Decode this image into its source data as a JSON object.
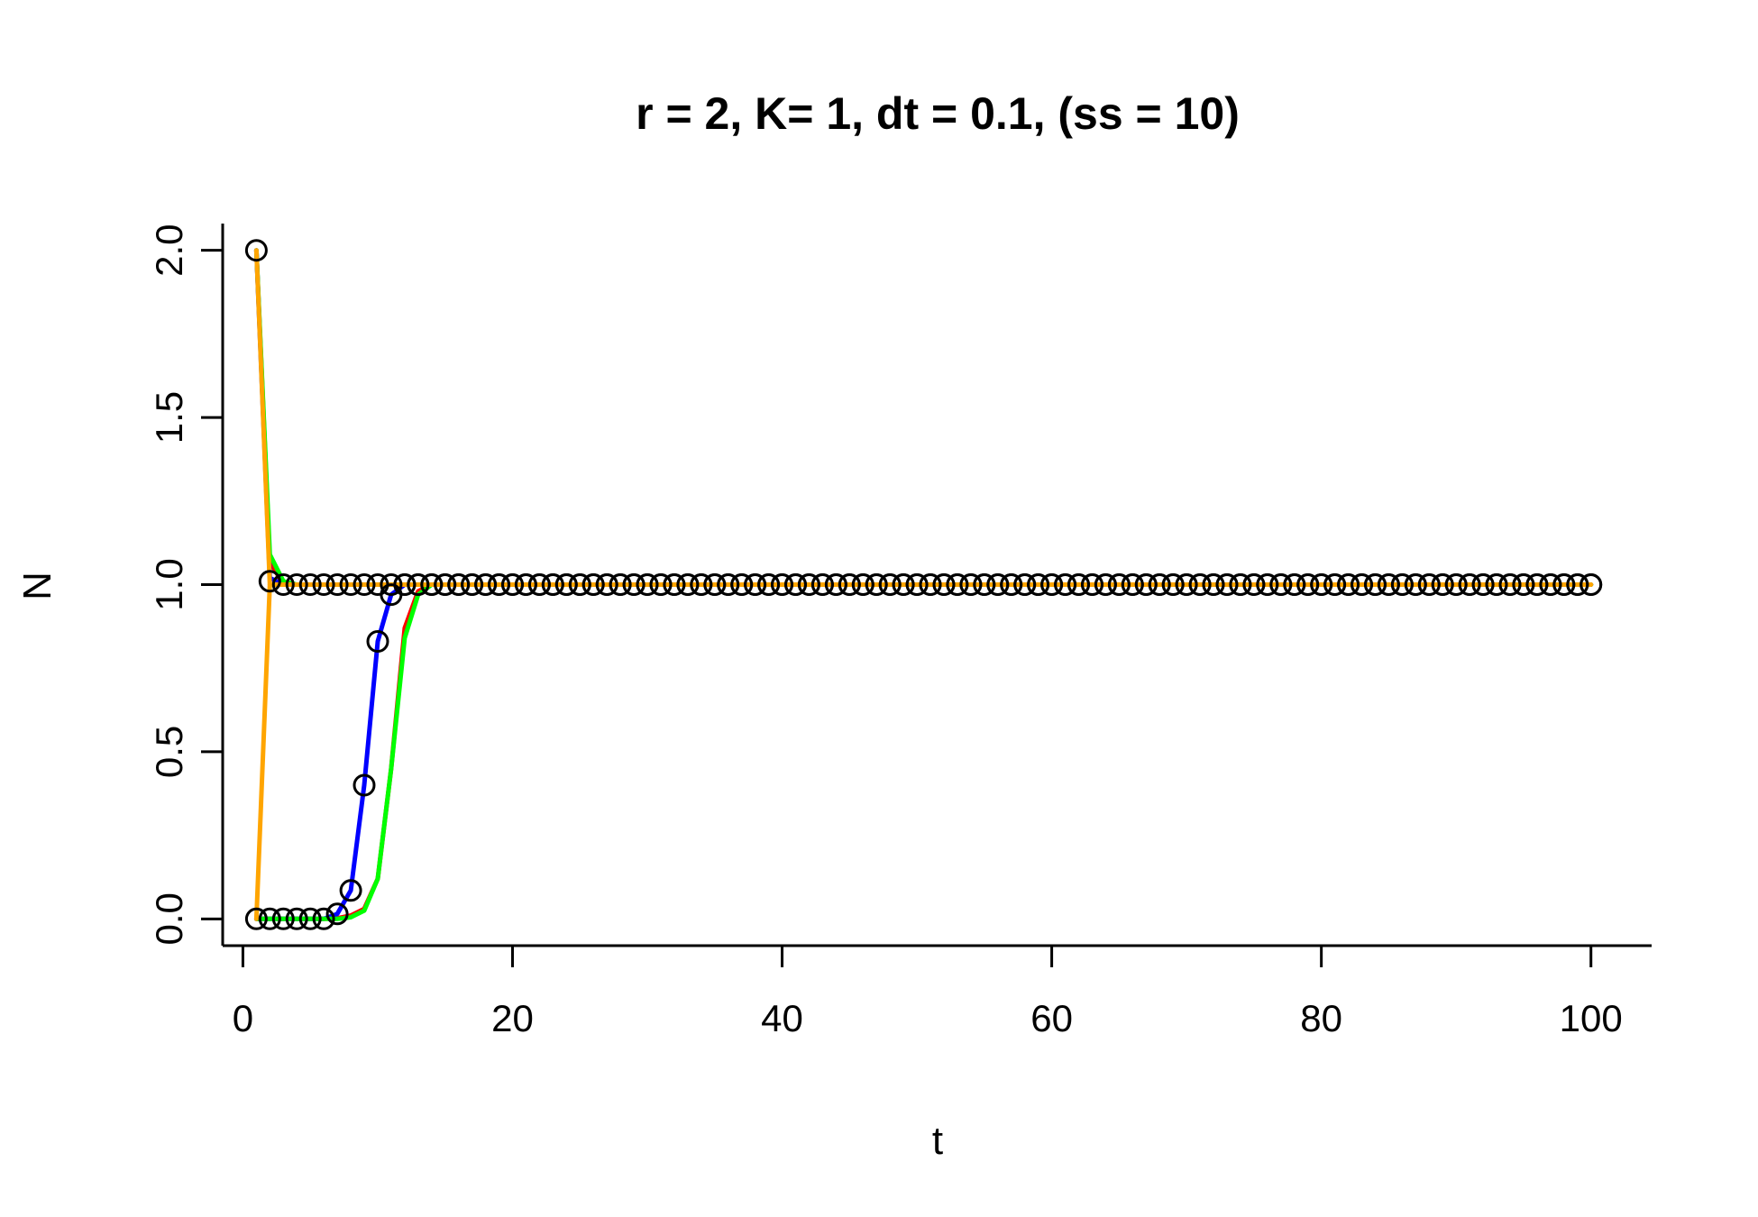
{
  "chart_data": {
    "type": "line",
    "title": "r = 2, K= 1, dt = 0.1, (ss = 10)",
    "xlabel": "t",
    "ylabel": "N",
    "xlim": [
      -1.5,
      104.5
    ],
    "ylim": [
      -0.08,
      2.08
    ],
    "xticks": [
      0,
      20,
      40,
      60,
      80,
      100
    ],
    "yticks": [
      0.0,
      0.5,
      1.0,
      1.5,
      2.0
    ],
    "xtick_labels": [
      "0",
      "20",
      "40",
      "60",
      "80",
      "100"
    ],
    "ytick_labels": [
      "0.0",
      "0.5",
      "1.0",
      "1.5",
      "2.0"
    ],
    "grid": false,
    "points": [
      {
        "name": "",
        "marker": "open-circle",
        "color": "#000000",
        "x_start": 1,
        "y_sets": [
          [
            2.0,
            1.01
          ],
          [
            0.0,
            0.0,
            0.0,
            0.0,
            0.0,
            0.0,
            0.015,
            0.085,
            0.4,
            0.83,
            0.97
          ]
        ],
        "y_tail": 1.0,
        "x_end": 100
      }
    ],
    "series": [
      {
        "name": "",
        "color": "#ff0000",
        "x": [
          1,
          2,
          3,
          4,
          5,
          6,
          7,
          8,
          9,
          10,
          11,
          12,
          13,
          14,
          100
        ],
        "values": [
          0.0,
          0.0,
          0.0,
          0.0,
          0.0,
          0.0,
          0.002,
          0.01,
          0.03,
          0.12,
          0.45,
          0.87,
          0.98,
          1.0,
          1.0
        ]
      },
      {
        "name": "",
        "color": "#ff0000",
        "x": [
          1,
          2,
          3,
          4,
          100
        ],
        "values": [
          2.0,
          1.07,
          1.0,
          1.0,
          1.0
        ]
      },
      {
        "name": "",
        "color": "#0000ff",
        "x": [
          1,
          2,
          3,
          4,
          5,
          6,
          7,
          8,
          9,
          10,
          11,
          12,
          13,
          100
        ],
        "values": [
          0.0,
          0.0,
          0.0,
          0.0,
          0.0,
          0.0,
          0.015,
          0.085,
          0.4,
          0.83,
          0.97,
          1.0,
          1.0,
          1.0
        ]
      },
      {
        "name": "",
        "color": "#0000ff",
        "x": [
          1,
          2,
          3,
          100
        ],
        "values": [
          2.0,
          1.02,
          1.0,
          1.0
        ]
      },
      {
        "name": "",
        "color": "#00ff00",
        "x": [
          1,
          2,
          3,
          4,
          5,
          6,
          7,
          8,
          9,
          10,
          11,
          12,
          13,
          14,
          100
        ],
        "values": [
          0.0,
          0.0,
          0.0,
          0.0,
          0.0,
          0.0,
          0.0,
          0.005,
          0.025,
          0.12,
          0.45,
          0.84,
          0.97,
          1.0,
          1.0
        ]
      },
      {
        "name": "",
        "color": "#00ff00",
        "x": [
          1,
          2,
          3,
          4,
          100
        ],
        "values": [
          2.0,
          1.09,
          1.01,
          1.0,
          1.0
        ]
      },
      {
        "name": "",
        "color": "#ffa500",
        "x": [
          1,
          2,
          100
        ],
        "values": [
          2.0,
          1.0,
          1.0
        ]
      },
      {
        "name": "",
        "color": "#ffa500",
        "x": [
          1,
          2,
          100
        ],
        "values": [
          0.0,
          1.0,
          1.0
        ]
      }
    ]
  }
}
